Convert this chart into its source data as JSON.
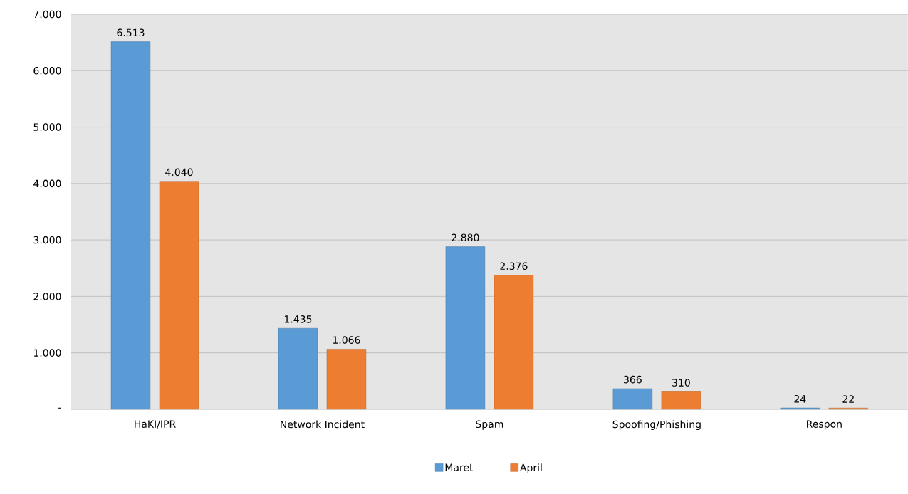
{
  "chart_data": {
    "type": "bar",
    "categories": [
      "HaKI/IPR",
      "Network Incident",
      "Spam",
      "Spoofing/Phishing",
      "Respon"
    ],
    "series": [
      {
        "name": "Maret",
        "color": "#5b9bd5",
        "values": [
          6513,
          1435,
          2880,
          366,
          24
        ],
        "value_labels": [
          "6.513",
          "1.435",
          "2.880",
          "366",
          "24"
        ]
      },
      {
        "name": "April",
        "color": "#ed7d31",
        "values": [
          4040,
          1066,
          2376,
          310,
          22
        ],
        "value_labels": [
          "4.040",
          "1.066",
          "2.376",
          "310",
          "22"
        ]
      }
    ],
    "ylim": [
      0,
      7000
    ],
    "yticks": [
      {
        "value": 0,
        "label": "-"
      },
      {
        "value": 1000,
        "label": "1.000"
      },
      {
        "value": 2000,
        "label": "2.000"
      },
      {
        "value": 3000,
        "label": "3.000"
      },
      {
        "value": 4000,
        "label": "4.000"
      },
      {
        "value": 5000,
        "label": "5.000"
      },
      {
        "value": 6000,
        "label": "6.000"
      },
      {
        "value": 7000,
        "label": "7.000"
      }
    ],
    "grid": "y",
    "legend": "bottom"
  }
}
